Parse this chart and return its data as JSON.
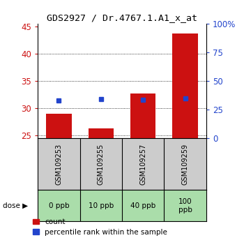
{
  "title": "GDS2927 / Dr.4767.1.A1_x_at",
  "samples": [
    "GSM109253",
    "GSM109255",
    "GSM109257",
    "GSM109259"
  ],
  "doses": [
    "0 ppb",
    "10 ppb",
    "40 ppb",
    "100\nppb"
  ],
  "count_values": [
    29.0,
    26.2,
    32.7,
    43.7
  ],
  "percentile_values": [
    33.0,
    34.0,
    33.5,
    34.5
  ],
  "ylim_left": [
    24.5,
    45.5
  ],
  "ylim_right": [
    0,
    100
  ],
  "yticks_left": [
    25,
    30,
    35,
    40,
    45
  ],
  "yticks_right": [
    0,
    25,
    50,
    75,
    100
  ],
  "bar_color": "#cc1111",
  "dot_color": "#2244cc",
  "bar_bottom": 24.5,
  "background_color": "#ffffff",
  "sample_box_color": "#cccccc",
  "dose_box_color": "#aaddaa",
  "legend_count_color": "#cc1111",
  "legend_dot_color": "#2244cc"
}
